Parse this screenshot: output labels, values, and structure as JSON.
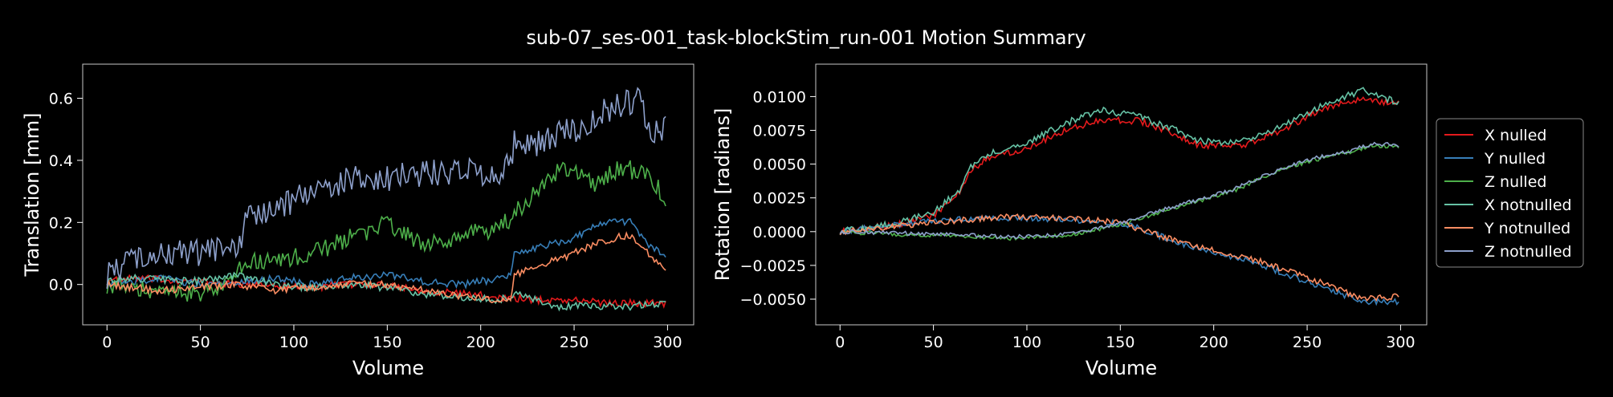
{
  "figure_title": "sub-07_ses-001_task-blockStim_run-001 Motion Summary",
  "colors": {
    "background": "#000000",
    "axes_edge": "#c8c8c8",
    "x_nulled": "#e41a1c",
    "y_nulled": "#377eb8",
    "z_nulled": "#4daf4a",
    "x_notnulled": "#66c2a5",
    "y_notnulled": "#fc8d62",
    "z_notnulled": "#8da0cb"
  },
  "legend": [
    "X nulled",
    "Y nulled",
    "Z nulled",
    "X notnulled",
    "Y notnulled",
    "Z notnulled"
  ],
  "chart_data": [
    {
      "type": "line",
      "xlabel": "Volume",
      "ylabel": "Translation [mm]",
      "xlim": [
        -13,
        314
      ],
      "ylim": [
        -0.13,
        0.71
      ],
      "xticks": [
        0,
        50,
        100,
        150,
        200,
        250,
        300
      ],
      "yticks": [
        0.0,
        0.2,
        0.4,
        0.6
      ],
      "ytick_labels": [
        "0.0",
        "0.2",
        "0.4",
        "0.6"
      ],
      "n_points": 300,
      "series": [
        {
          "name": "X nulled",
          "x": [
            0,
            15,
            30,
            50,
            70,
            90,
            110,
            130,
            150,
            170,
            190,
            210,
            230,
            250,
            270,
            299
          ],
          "y": [
            0.01,
            0.02,
            0.015,
            0.01,
            0.0,
            0.0,
            -0.01,
            0.0,
            0.0,
            -0.02,
            -0.03,
            -0.04,
            -0.05,
            -0.05,
            -0.06,
            -0.06
          ]
        },
        {
          "name": "Y nulled",
          "x": [
            0,
            15,
            30,
            50,
            70,
            90,
            110,
            130,
            150,
            170,
            190,
            210,
            216,
            218,
            230,
            250,
            265,
            280,
            290,
            299
          ],
          "y": [
            0.0,
            0.01,
            0.02,
            0.0,
            0.01,
            0.02,
            0.0,
            0.02,
            0.03,
            0.01,
            0.0,
            0.02,
            0.03,
            0.1,
            0.12,
            0.15,
            0.2,
            0.2,
            0.13,
            0.09
          ]
        },
        {
          "name": "Z nulled",
          "x": [
            0,
            20,
            40,
            60,
            75,
            90,
            110,
            130,
            150,
            170,
            190,
            210,
            220,
            230,
            245,
            260,
            275,
            290,
            299
          ],
          "y": [
            0.0,
            -0.02,
            -0.03,
            -0.02,
            0.07,
            0.08,
            0.1,
            0.15,
            0.2,
            0.12,
            0.16,
            0.18,
            0.24,
            0.3,
            0.38,
            0.32,
            0.38,
            0.35,
            0.28
          ]
        },
        {
          "name": "X notnulled",
          "x": [
            0,
            15,
            30,
            50,
            70,
            90,
            110,
            130,
            150,
            170,
            190,
            210,
            220,
            240,
            260,
            280,
            299
          ],
          "y": [
            0.01,
            0.02,
            0.015,
            0.01,
            0.03,
            0.0,
            -0.01,
            0.0,
            -0.01,
            -0.03,
            -0.04,
            -0.05,
            -0.03,
            -0.07,
            -0.07,
            -0.07,
            -0.06
          ]
        },
        {
          "name": "Y notnulled",
          "x": [
            0,
            15,
            30,
            50,
            70,
            90,
            110,
            130,
            150,
            170,
            190,
            210,
            216,
            218,
            230,
            250,
            265,
            280,
            290,
            299
          ],
          "y": [
            0.0,
            -0.01,
            -0.02,
            -0.01,
            0.0,
            -0.02,
            -0.01,
            0.0,
            0.0,
            -0.02,
            -0.04,
            -0.05,
            -0.04,
            0.03,
            0.06,
            0.1,
            0.14,
            0.16,
            0.1,
            0.05
          ]
        },
        {
          "name": "Z notnulled",
          "x": [
            0,
            15,
            30,
            50,
            70,
            75,
            90,
            110,
            130,
            150,
            170,
            190,
            210,
            216,
            218,
            230,
            250,
            265,
            275,
            285,
            290,
            299
          ],
          "y": [
            0.03,
            0.08,
            0.1,
            0.1,
            0.12,
            0.22,
            0.24,
            0.3,
            0.34,
            0.34,
            0.36,
            0.36,
            0.36,
            0.38,
            0.48,
            0.45,
            0.5,
            0.55,
            0.58,
            0.6,
            0.5,
            0.5
          ]
        }
      ]
    },
    {
      "type": "line",
      "xlabel": "Volume",
      "ylabel": "Rotation [radians]",
      "xlim": [
        -13,
        314
      ],
      "ylim": [
        -0.0069,
        0.0124
      ],
      "xticks": [
        0,
        50,
        100,
        150,
        200,
        250,
        300
      ],
      "yticks": [
        -0.005,
        -0.0025,
        0.0,
        0.0025,
        0.005,
        0.0075,
        0.01
      ],
      "ytick_labels": [
        "−0.0050",
        "−0.0025",
        "0.0000",
        "0.0025",
        "0.0050",
        "0.0075",
        "0.0100"
      ],
      "n_points": 300,
      "legend_position": "right-outside",
      "series": [
        {
          "name": "X nulled",
          "x": [
            0,
            30,
            50,
            65,
            70,
            80,
            100,
            120,
            140,
            160,
            180,
            190,
            200,
            220,
            240,
            260,
            280,
            299
          ],
          "y": [
            0.0,
            0.0005,
            0.0012,
            0.003,
            0.0045,
            0.0055,
            0.0062,
            0.0075,
            0.0083,
            0.0082,
            0.0072,
            0.0065,
            0.0063,
            0.0065,
            0.0078,
            0.0092,
            0.0098,
            0.0095
          ]
        },
        {
          "name": "Y nulled",
          "x": [
            0,
            30,
            60,
            90,
            120,
            150,
            160,
            180,
            200,
            220,
            240,
            260,
            280,
            299
          ],
          "y": [
            0.0,
            0.0005,
            0.0009,
            0.001,
            0.0009,
            0.0006,
            0.0003,
            -0.0008,
            -0.0015,
            -0.0022,
            -0.0032,
            -0.0042,
            -0.0052,
            -0.0052
          ]
        },
        {
          "name": "Z nulled",
          "x": [
            0,
            30,
            60,
            90,
            120,
            150,
            170,
            190,
            210,
            230,
            250,
            270,
            285,
            299
          ],
          "y": [
            0.0,
            -0.0002,
            -0.0003,
            -0.0005,
            -0.0003,
            0.0005,
            0.0014,
            0.0022,
            0.003,
            0.0042,
            0.0052,
            0.0058,
            0.0064,
            0.0063
          ]
        },
        {
          "name": "X notnulled",
          "x": [
            0,
            30,
            50,
            65,
            70,
            80,
            100,
            120,
            140,
            160,
            180,
            190,
            200,
            220,
            240,
            260,
            280,
            299
          ],
          "y": [
            0.0,
            0.0006,
            0.0014,
            0.0032,
            0.0048,
            0.0058,
            0.0065,
            0.008,
            0.009,
            0.0085,
            0.0075,
            0.0068,
            0.0066,
            0.0068,
            0.008,
            0.0095,
            0.0105,
            0.0095
          ]
        },
        {
          "name": "Y notnulled",
          "x": [
            0,
            30,
            60,
            90,
            120,
            150,
            160,
            180,
            200,
            220,
            240,
            260,
            280,
            299
          ],
          "y": [
            0.0,
            0.0004,
            0.0008,
            0.0011,
            0.001,
            0.0007,
            0.0002,
            -0.0007,
            -0.0014,
            -0.002,
            -0.0029,
            -0.0039,
            -0.005,
            -0.0048
          ]
        },
        {
          "name": "Z notnulled",
          "x": [
            0,
            30,
            60,
            90,
            120,
            150,
            170,
            190,
            210,
            230,
            250,
            270,
            285,
            299
          ],
          "y": [
            0.0,
            -0.0001,
            -0.0002,
            -0.0004,
            -0.0002,
            0.0006,
            0.0015,
            0.0023,
            0.0031,
            0.0043,
            0.0053,
            0.0059,
            0.0065,
            0.0064
          ]
        }
      ]
    }
  ]
}
